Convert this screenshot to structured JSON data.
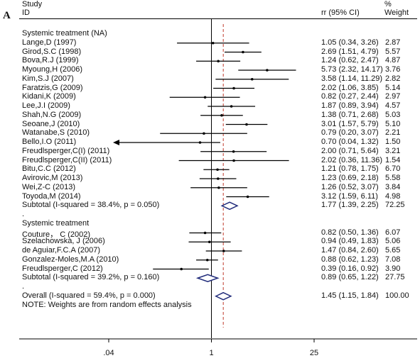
{
  "panel_letter": "A",
  "header": {
    "study": "Study",
    "id": "ID",
    "estimate": "rr (95% CI)",
    "pct": "%",
    "weight": "Weight"
  },
  "note": "NOTE: Weights are from random effects analysis",
  "chart_data": {
    "type": "forest",
    "x_scale": "log",
    "x_ticks": [
      {
        "value": 0.04,
        "label": ".04"
      },
      {
        "value": 1,
        "label": "1"
      },
      {
        "value": 25,
        "label": "25"
      }
    ],
    "null_line": 1,
    "overall_line": 1.45,
    "rows": [
      {
        "kind": "group",
        "label": "Systemic treatment (NA)"
      },
      {
        "kind": "study",
        "label": "Lange,D (1997)",
        "rr": 1.05,
        "lo": 0.34,
        "hi": 3.26,
        "est_text": "1.05 (0.34, 3.26)",
        "weight": 2.87,
        "weight_text": "2.87"
      },
      {
        "kind": "study",
        "label": "Girod,S.C (1998)",
        "rr": 2.69,
        "lo": 1.51,
        "hi": 4.79,
        "est_text": "2.69 (1.51, 4.79)",
        "weight": 5.57,
        "weight_text": "5.57"
      },
      {
        "kind": "study",
        "label": "Bova,R.J (1999)",
        "rr": 1.24,
        "lo": 0.62,
        "hi": 2.47,
        "est_text": "1.24 (0.62, 2.47)",
        "weight": 4.87,
        "weight_text": "4.87"
      },
      {
        "kind": "study",
        "label": "Myoung,H (2006)",
        "rr": 5.73,
        "lo": 2.32,
        "hi": 14.17,
        "est_text": "5.73 (2.32, 14.17)",
        "weight": 3.76,
        "weight_text": "3.76"
      },
      {
        "kind": "study",
        "label": "Kim,S.J (2007)",
        "rr": 3.58,
        "lo": 1.14,
        "hi": 11.29,
        "est_text": "3.58 (1.14, 11.29)",
        "weight": 2.82,
        "weight_text": "2.82"
      },
      {
        "kind": "study",
        "label": "Faratzis,G (2009)",
        "rr": 2.02,
        "lo": 1.06,
        "hi": 3.85,
        "est_text": "2.02 (1.06, 3.85)",
        "weight": 5.14,
        "weight_text": "5.14"
      },
      {
        "kind": "study",
        "label": "Kidani,K (2009)",
        "rr": 0.82,
        "lo": 0.27,
        "hi": 2.44,
        "est_text": "0.82 (0.27, 2.44)",
        "weight": 2.97,
        "weight_text": "2.97"
      },
      {
        "kind": "study",
        "label": "Lee,J.I (2009)",
        "rr": 1.87,
        "lo": 0.89,
        "hi": 3.94,
        "est_text": "1.87 (0.89, 3.94)",
        "weight": 4.57,
        "weight_text": "4.57"
      },
      {
        "kind": "study",
        "label": "Shah,N.G (2009)",
        "rr": 1.38,
        "lo": 0.71,
        "hi": 2.68,
        "est_text": "1.38 (0.71, 2.68)",
        "weight": 5.03,
        "weight_text": "5.03"
      },
      {
        "kind": "study",
        "label": "Seoane,J (2010)",
        "rr": 3.01,
        "lo": 1.57,
        "hi": 5.79,
        "est_text": "3.01 (1.57, 5.79)",
        "weight": 5.1,
        "weight_text": "5.10"
      },
      {
        "kind": "study",
        "label": "Watanabe,S (2010)",
        "rr": 0.79,
        "lo": 0.2,
        "hi": 3.07,
        "est_text": "0.79 (0.20, 3.07)",
        "weight": 2.21,
        "weight_text": "2.21"
      },
      {
        "kind": "study",
        "label": "Bello,I.O (2011)",
        "rr": 0.7,
        "lo": 0.04,
        "hi": 1.32,
        "lo_arrow": true,
        "est_text": "0.70 (0.04, 1.32)",
        "weight": 1.5,
        "weight_text": "1.50"
      },
      {
        "kind": "study",
        "label": "Freudlsperger,C(I) (2011)",
        "rr": 2.0,
        "lo": 0.71,
        "hi": 5.64,
        "est_text": "2.00 (0.71, 5.64)",
        "weight": 3.21,
        "weight_text": "3.21"
      },
      {
        "kind": "study",
        "label": "Freudlsperger,C(II) (2011)",
        "rr": 2.02,
        "lo": 0.36,
        "hi": 11.36,
        "est_text": "2.02 (0.36, 11.36)",
        "weight": 1.54,
        "weight_text": "1.54"
      },
      {
        "kind": "study",
        "label": "Bitu,C.C (2012)",
        "rr": 1.21,
        "lo": 0.78,
        "hi": 1.75,
        "est_text": "1.21 (0.78, 1.75)",
        "weight": 6.7,
        "weight_text": "6.70"
      },
      {
        "kind": "study",
        "label": "Avirovic,M (2013)",
        "rr": 1.23,
        "lo": 0.69,
        "hi": 2.18,
        "est_text": "1.23 (0.69, 2.18)",
        "weight": 5.58,
        "weight_text": "5.58"
      },
      {
        "kind": "study",
        "label": "Wei,Z-C (2013)",
        "rr": 1.26,
        "lo": 0.52,
        "hi": 3.07,
        "est_text": "1.26 (0.52, 3.07)",
        "weight": 3.84,
        "weight_text": "3.84"
      },
      {
        "kind": "study",
        "label": "Toyoda,M (2014)",
        "rr": 3.12,
        "lo": 1.59,
        "hi": 6.11,
        "est_text": "3.12 (1.59, 6.11)",
        "weight": 4.98,
        "weight_text": "4.98"
      },
      {
        "kind": "subtotal",
        "label": "Subtotal (I-squared = 38.4%, p = 0.050)",
        "rr": 1.77,
        "lo": 1.39,
        "hi": 2.25,
        "est_text": "1.77 (1.39, 2.25)",
        "weight_text": "72.25"
      },
      {
        "kind": "dot",
        "label": "."
      },
      {
        "kind": "group",
        "label": "Systemic treatment"
      },
      {
        "kind": "study",
        "label": "Couture， C (2002)",
        "rr": 0.82,
        "lo": 0.5,
        "hi": 1.36,
        "est_text": "0.82 (0.50, 1.36)",
        "weight": 6.07,
        "weight_text": "6.07"
      },
      {
        "kind": "study",
        "label": "Szelachowska, J (2006)",
        "rr": 0.94,
        "lo": 0.49,
        "hi": 1.83,
        "est_text": "0.94 (0.49, 1.83)",
        "weight": 5.06,
        "weight_text": "5.06"
      },
      {
        "kind": "study",
        "label": "de Aguiar,F.C.A (2007)",
        "rr": 1.47,
        "lo": 0.84,
        "hi": 2.6,
        "est_text": "1.47 (0.84, 2.60)",
        "weight": 5.65,
        "weight_text": "5.65"
      },
      {
        "kind": "study",
        "label": "Gonzalez-Moles,M.A (2010)",
        "rr": 0.88,
        "lo": 0.62,
        "hi": 1.23,
        "est_text": "0.88 (0.62, 1.23)",
        "weight": 7.08,
        "weight_text": "7.08"
      },
      {
        "kind": "study",
        "label": "Freudlsperger,C (2012)",
        "rr": 0.39,
        "lo": 0.16,
        "hi": 0.92,
        "est_text": "0.39 (0.16, 0.92)",
        "weight": 3.9,
        "weight_text": "3.90"
      },
      {
        "kind": "subtotal",
        "label": "Subtotal (I-squared = 39.2%, p = 0.160)",
        "rr": 0.89,
        "lo": 0.65,
        "hi": 1.22,
        "est_text": "0.89 (0.65, 1.22)",
        "weight_text": "27.75"
      },
      {
        "kind": "dot",
        "label": "."
      },
      {
        "kind": "overall",
        "label": "Overall (I-squared = 59.4%, p = 0.000)",
        "rr": 1.45,
        "lo": 1.15,
        "hi": 1.84,
        "est_text": "1.45 (1.15, 1.84)",
        "weight_text": "100.00"
      }
    ]
  }
}
